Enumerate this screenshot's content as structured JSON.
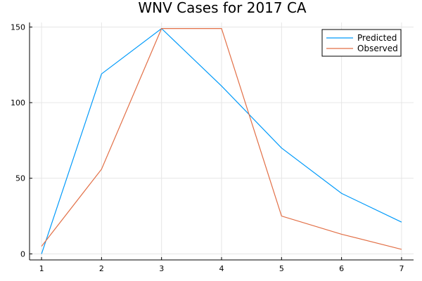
{
  "chart_data": {
    "type": "line",
    "title": "WNV Cases for 2017 CA",
    "xlabel": "",
    "ylabel": "",
    "x": [
      1,
      2,
      3,
      4,
      5,
      6,
      7
    ],
    "xlim": [
      0.8,
      7.2
    ],
    "ylim": [
      -4,
      153
    ],
    "xticks": [
      1,
      2,
      3,
      4,
      5,
      6,
      7
    ],
    "yticks": [
      0,
      50,
      100,
      150
    ],
    "grid": true,
    "legend_position": "top-right",
    "series": [
      {
        "name": "Predicted",
        "color": "#009AFA",
        "values": [
          0,
          119,
          149,
          111,
          70,
          40,
          21
        ]
      },
      {
        "name": "Observed",
        "color": "#E26F46",
        "values": [
          5,
          56,
          149,
          149,
          25,
          13,
          3
        ]
      }
    ]
  }
}
